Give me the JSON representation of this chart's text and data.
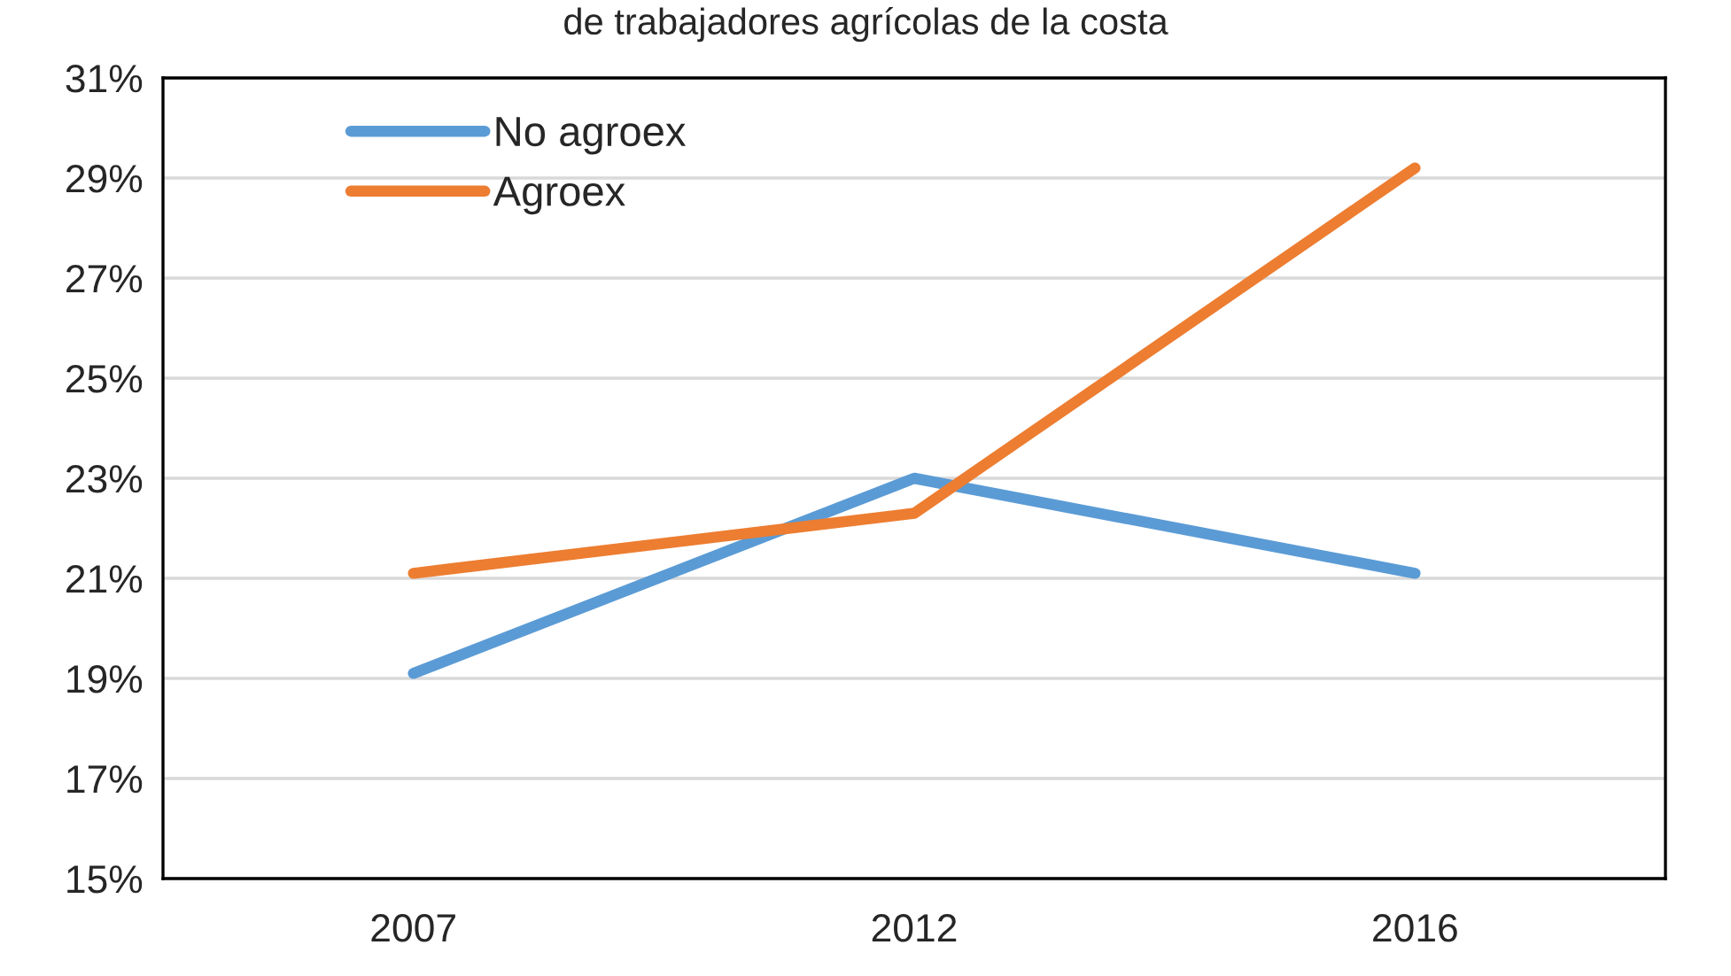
{
  "chart_data": {
    "type": "line",
    "title": "de trabajadores agrícolas de la costa",
    "categories": [
      "2007",
      "2012",
      "2016"
    ],
    "series": [
      {
        "name": "No agroex",
        "color": "#5b9bd5",
        "values": [
          19.1,
          23.0,
          21.1
        ]
      },
      {
        "name": "Agroex",
        "color": "#ed7d31",
        "values": [
          21.1,
          22.3,
          29.2
        ]
      }
    ],
    "ylim": [
      15,
      31
    ],
    "yticks": [
      {
        "value": 15,
        "label": "15%"
      },
      {
        "value": 17,
        "label": "17%"
      },
      {
        "value": 19,
        "label": "19%"
      },
      {
        "value": 21,
        "label": "21%"
      },
      {
        "value": 23,
        "label": "23%"
      },
      {
        "value": 25,
        "label": "25%"
      },
      {
        "value": 27,
        "label": "27%"
      },
      {
        "value": 29,
        "label": "29%"
      },
      {
        "value": 31,
        "label": "31%"
      }
    ],
    "grid": "y",
    "legend": "top left",
    "marker": "none",
    "line_style": "solid"
  }
}
